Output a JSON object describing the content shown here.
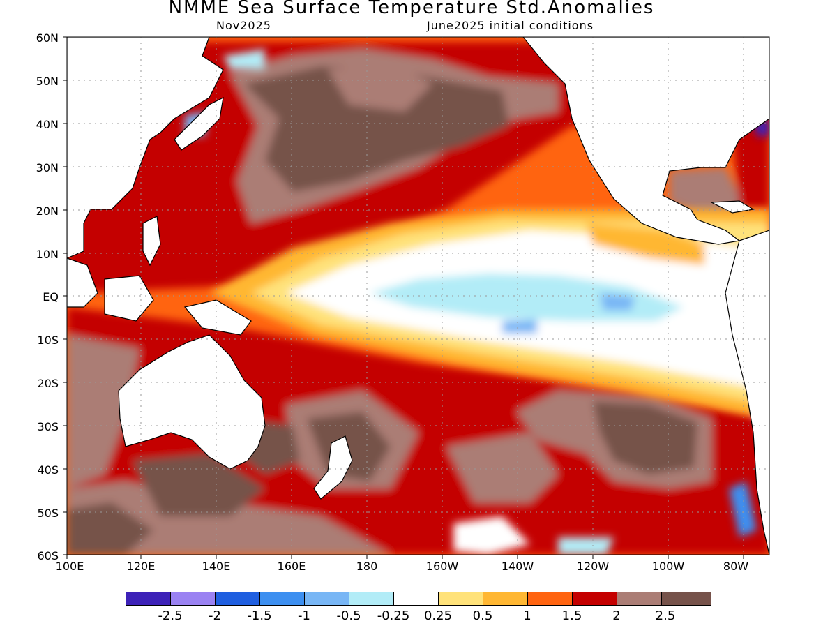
{
  "title": "NMME Sea Surface Temperature Std.Anomalies",
  "subtitle_left": "Nov2025",
  "subtitle_right": "June2025 initial conditions",
  "lat_labels": [
    "60N",
    "50N",
    "40N",
    "30N",
    "20N",
    "10N",
    "EQ",
    "10S",
    "20S",
    "30S",
    "40S",
    "50S",
    "60S"
  ],
  "lon_labels": [
    "100E",
    "120E",
    "140E",
    "160E",
    "180",
    "160W",
    "140W",
    "120W",
    "100W",
    "80W"
  ],
  "colorbar": {
    "colors": [
      "#3d22b8",
      "#9a82f2",
      "#1f5fe0",
      "#3d8ff0",
      "#78b6f5",
      "#b2ecf7",
      "#ffffff",
      "#ffe27a",
      "#ffb733",
      "#ff6410",
      "#c40000",
      "#ab7d75",
      "#76524a"
    ],
    "labels": [
      "-2.5",
      "-2",
      "-1.5",
      "-1",
      "-0.5",
      "-0.25",
      "0.25",
      "0.5",
      "1",
      "1.5",
      "2",
      "2.5"
    ]
  },
  "colors": {
    "land": "#ffffff",
    "coast": "#000000",
    "grid": "#888888"
  }
}
